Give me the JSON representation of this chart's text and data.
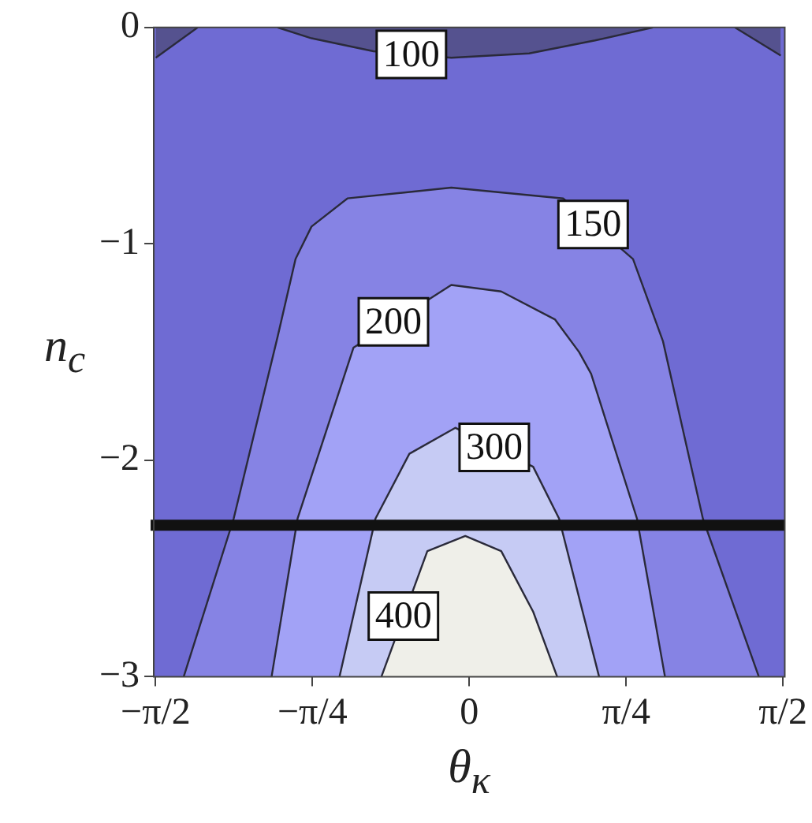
{
  "chart_data": {
    "type": "area",
    "xlabel": "θ$_{κ}$",
    "ylabel": "n$_{c}$",
    "xlim": [
      -1.58,
      1.58
    ],
    "ylim": [
      -3,
      0
    ],
    "xticks": [
      {
        "value": -1.5708,
        "label": "−π/2"
      },
      {
        "value": -0.7854,
        "label": "−π/4"
      },
      0,
      {
        "value": 0.7854,
        "label": "π/4"
      },
      {
        "value": 1.5708,
        "label": "π/2"
      }
    ],
    "yticks": [
      {
        "value": -3,
        "label": "−3"
      },
      {
        "value": -2,
        "label": "−2"
      },
      {
        "value": -1,
        "label": "−1"
      },
      0
    ],
    "bands": [
      {
        "axis": "y",
        "from": -3,
        "to": 0,
        "color": "#6f6bd3"
      }
    ],
    "series": [
      {
        "color": "#8683e4",
        "x": [
          -1.43,
          -1.18,
          -0.96,
          -0.87,
          -0.79,
          -0.61,
          -0.09,
          0.47,
          0.82,
          0.97,
          1.17,
          1.45
        ],
        "values": [
          -3.0,
          -2.27,
          -1.43,
          -1.07,
          -0.92,
          -0.79,
          -0.74,
          -0.79,
          -1.07,
          -1.45,
          -2.27,
          -3.0
        ]
      },
      {
        "color": "#a2a2f6",
        "x": [
          -0.99,
          -0.86,
          -0.58,
          -0.09,
          0.16,
          0.43,
          0.55,
          0.61,
          0.84,
          0.98
        ],
        "values": [
          -3.0,
          -2.27,
          -1.48,
          -1.19,
          -1.22,
          -1.35,
          -1.5,
          -1.6,
          -2.27,
          -3.0
        ]
      },
      {
        "color": "#c6cbf4",
        "x": [
          -0.65,
          -0.47,
          -0.3,
          -0.07,
          0.32,
          0.45,
          0.65
        ],
        "values": [
          -3.0,
          -2.27,
          -1.97,
          -1.85,
          -2.03,
          -2.27,
          -3.0
        ]
      },
      {
        "color": "#efefe9",
        "x": [
          -0.44,
          -0.21,
          -0.02,
          0.16,
          0.32,
          0.44
        ],
        "values": [
          -3.0,
          -2.42,
          -2.35,
          -2.42,
          -2.7,
          -3.0
        ]
      },
      {
        "color": "#55528f",
        "x": [
          -0.96,
          -0.79,
          -0.48,
          -0.09,
          0.3,
          0.63,
          0.92
        ],
        "values": [
          0,
          -0.05,
          -0.11,
          -0.14,
          -0.12,
          -0.06,
          0
        ]
      },
      {
        "color": "#55528f",
        "x": [
          -1.57,
          -1.36
        ],
        "values": [
          -0.14,
          0
        ]
      },
      {
        "color": "#55528f",
        "x": [
          1.33,
          1.56
        ],
        "values": [
          0,
          -0.13
        ]
      }
    ],
    "ref_lines": [
      {
        "axis": "y",
        "value": -2.3,
        "color": "#111111"
      }
    ],
    "annotations": [
      {
        "text": "100",
        "x": -0.29,
        "y": -0.125
      },
      {
        "text": "150",
        "x": 0.62,
        "y": -0.91
      },
      {
        "text": "200",
        "x": -0.38,
        "y": -1.36
      },
      {
        "text": "300",
        "x": 0.125,
        "y": -1.94
      },
      {
        "text": "400",
        "x": -0.33,
        "y": -2.72
      }
    ]
  }
}
